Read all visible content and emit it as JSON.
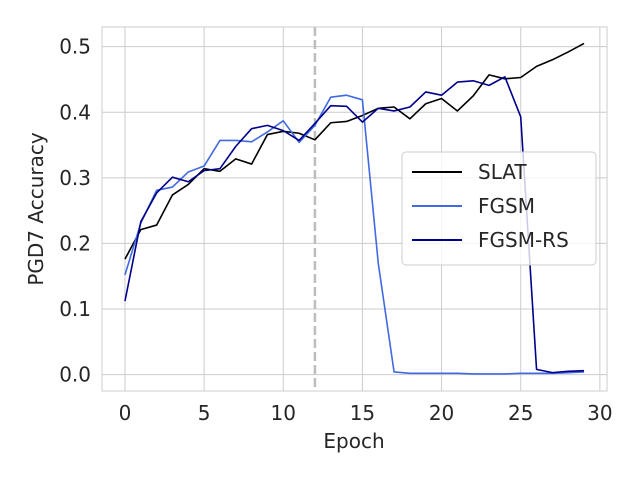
{
  "chart_data": {
    "type": "line",
    "title": "",
    "xlabel": "Epoch",
    "ylabel": "PGD7 Accuracy",
    "xlim": [
      -1.45,
      30.45
    ],
    "ylim": [
      -0.025,
      0.53
    ],
    "xticks": [
      0,
      5,
      10,
      15,
      20,
      25,
      30
    ],
    "yticks": [
      0.0,
      0.1,
      0.2,
      0.3,
      0.4,
      0.5
    ],
    "xtick_labels": [
      "0",
      "5",
      "10",
      "15",
      "20",
      "25",
      "30"
    ],
    "ytick_labels": [
      "0.0",
      "0.1",
      "0.2",
      "0.3",
      "0.4",
      "0.5"
    ],
    "grid": true,
    "legend_position": "center-right",
    "vline": {
      "x": 12,
      "style": "dashed",
      "color": "#bdbdbd"
    },
    "x": [
      0,
      1,
      2,
      3,
      4,
      5,
      6,
      7,
      8,
      9,
      10,
      11,
      12,
      13,
      14,
      15,
      16,
      17,
      18,
      19,
      20,
      21,
      22,
      23,
      24,
      25,
      26,
      27,
      28,
      29
    ],
    "series": [
      {
        "name": "SLAT",
        "color": "#000000",
        "values": [
          0.176,
          0.221,
          0.228,
          0.274,
          0.29,
          0.314,
          0.31,
          0.329,
          0.321,
          0.366,
          0.371,
          0.368,
          0.358,
          0.384,
          0.386,
          0.395,
          0.406,
          0.408,
          0.39,
          0.413,
          0.421,
          0.402,
          0.425,
          0.457,
          0.451,
          0.453,
          0.47,
          0.48,
          0.492,
          0.505
        ]
      },
      {
        "name": "FGSM",
        "color": "#4169e1",
        "values": [
          0.152,
          0.231,
          0.281,
          0.286,
          0.309,
          0.318,
          0.357,
          0.357,
          0.355,
          0.37,
          0.387,
          0.354,
          0.38,
          0.423,
          0.426,
          0.419,
          0.17,
          0.004,
          0.002,
          0.002,
          0.002,
          0.002,
          0.001,
          0.001,
          0.001,
          0.002,
          0.002,
          0.002,
          0.003,
          0.004
        ]
      },
      {
        "name": "FGSM-RS",
        "color": "#00008b",
        "values": [
          0.112,
          0.233,
          0.277,
          0.301,
          0.294,
          0.311,
          0.314,
          0.348,
          0.375,
          0.38,
          0.372,
          0.357,
          0.383,
          0.41,
          0.409,
          0.385,
          0.406,
          0.402,
          0.408,
          0.431,
          0.426,
          0.446,
          0.448,
          0.441,
          0.454,
          0.393,
          0.008,
          0.003,
          0.005,
          0.006
        ]
      }
    ]
  }
}
